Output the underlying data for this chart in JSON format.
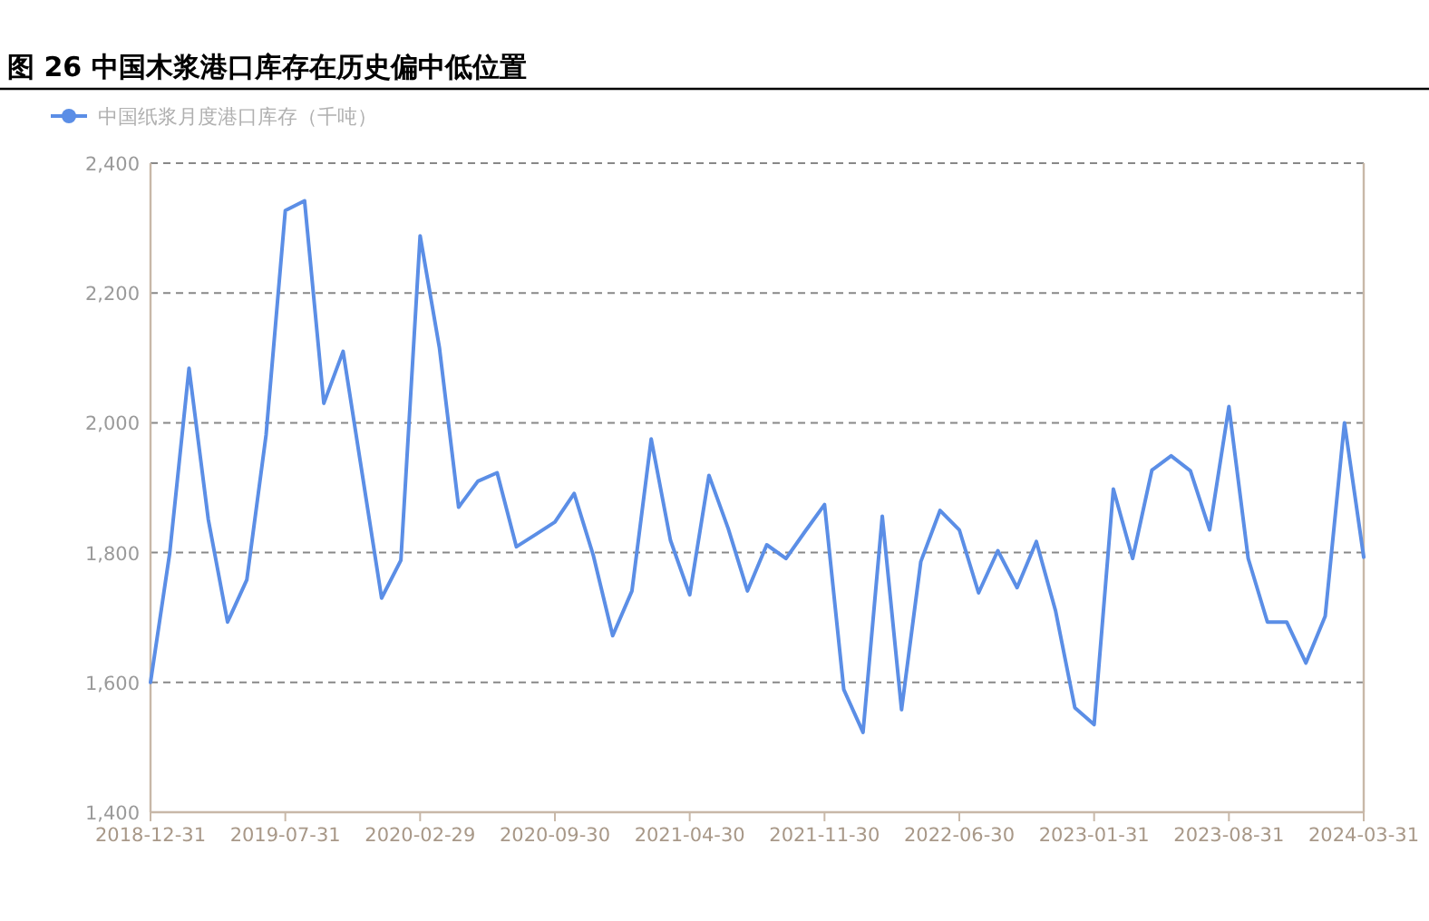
{
  "chart_data": {
    "type": "line",
    "title": "图 26 中国木浆港口库存在历史偏中低位置",
    "categories": [
      "2018-12-31",
      null,
      null,
      null,
      null,
      null,
      null,
      "2019-07-31",
      null,
      null,
      null,
      null,
      null,
      null,
      "2020-02-29",
      null,
      null,
      null,
      null,
      null,
      null,
      "2020-09-30",
      null,
      null,
      null,
      null,
      null,
      null,
      "2021-04-30",
      null,
      null,
      null,
      null,
      null,
      null,
      "2021-11-30",
      null,
      null,
      null,
      null,
      null,
      null,
      "2022-06-30",
      null,
      null,
      null,
      null,
      null,
      null,
      "2023-01-31",
      null,
      null,
      null,
      null,
      null,
      null,
      "2023-08-31",
      null,
      null,
      null,
      null,
      null,
      null,
      "2024-03-31"
    ],
    "series": [
      {
        "name": "中国纸浆月度港口库存（千吨）",
        "color": "#5b8ee6",
        "values": [
          1600,
          1800,
          2084,
          1851,
          1693,
          1758,
          1981,
          2327,
          2342,
          2030,
          2110,
          1920,
          1730,
          1788,
          2288,
          2116,
          1870,
          1910,
          1923,
          1809,
          1828,
          1847,
          1891,
          1795,
          1672,
          1741,
          1975,
          1819,
          1735,
          1919,
          1837,
          1741,
          1812,
          1791,
          1833,
          1874,
          1589,
          1523,
          1856,
          1558,
          1786,
          1865,
          1835,
          1738,
          1803,
          1746,
          1817,
          1710,
          1561,
          1535,
          1898,
          1791,
          1927,
          1949,
          1926,
          1835,
          2025,
          1791,
          1693,
          1693,
          1630,
          1702,
          2000,
          1793
        ]
      }
    ],
    "ylim": [
      1400,
      2400
    ],
    "yticks": [
      {
        "value": 1400,
        "label": "1,400"
      },
      {
        "value": 1600,
        "label": "1,600"
      },
      {
        "value": 1800,
        "label": "1,800"
      },
      {
        "value": 2000,
        "label": "2,000"
      },
      {
        "value": 2200,
        "label": "2,200"
      },
      {
        "value": 2400,
        "label": "2,400"
      }
    ],
    "grid": "y",
    "legend": "top left"
  }
}
